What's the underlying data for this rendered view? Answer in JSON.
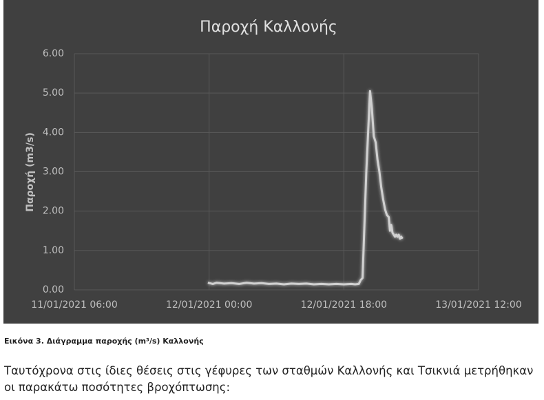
{
  "chart_data": {
    "type": "line",
    "title": "Παροχή Καλλονής",
    "y_label": "Παροχή (m3/s)",
    "x": [
      "11/01/2021 23:50",
      "12/01/2021 00:30",
      "12/01/2021 01:00",
      "12/01/2021 02:00",
      "12/01/2021 03:00",
      "12/01/2021 04:00",
      "12/01/2021 05:00",
      "12/01/2021 06:00",
      "12/01/2021 07:00",
      "12/01/2021 08:00",
      "12/01/2021 09:00",
      "12/01/2021 10:00",
      "12/01/2021 11:00",
      "12/01/2021 12:00",
      "12/01/2021 13:00",
      "12/01/2021 14:00",
      "12/01/2021 15:00",
      "12/01/2021 16:00",
      "12/01/2021 17:00",
      "12/01/2021 18:00",
      "12/01/2021 19:00",
      "12/01/2021 19:30",
      "12/01/2021 20:00",
      "12/01/2021 20:15",
      "12/01/2021 20:30",
      "12/01/2021 21:00",
      "12/01/2021 21:30",
      "12/01/2021 21:45",
      "12/01/2021 22:00",
      "12/01/2021 22:15",
      "12/01/2021 22:30",
      "12/01/2021 22:45",
      "12/01/2021 23:00",
      "12/01/2021 23:15",
      "12/01/2021 23:30",
      "12/01/2021 23:45",
      "13/01/2021 00:00",
      "13/01/2021 00:10",
      "13/01/2021 00:20",
      "13/01/2021 00:30",
      "13/01/2021 00:40",
      "13/01/2021 00:50",
      "13/01/2021 01:00",
      "13/01/2021 01:10",
      "13/01/2021 01:20",
      "13/01/2021 01:30",
      "13/01/2021 01:40",
      "13/01/2021 01:50"
    ],
    "series": [
      {
        "name": "Παροχή",
        "color": "#d0d0d0",
        "values": [
          0.18,
          0.15,
          0.18,
          0.16,
          0.17,
          0.15,
          0.18,
          0.16,
          0.17,
          0.15,
          0.16,
          0.14,
          0.16,
          0.15,
          0.16,
          0.14,
          0.15,
          0.14,
          0.15,
          0.14,
          0.15,
          0.14,
          0.15,
          0.25,
          0.3,
          3.0,
          5.05,
          4.6,
          3.9,
          3.75,
          3.3,
          3.0,
          2.6,
          2.3,
          2.05,
          1.9,
          1.85,
          1.5,
          1.65,
          1.45,
          1.4,
          1.35,
          1.4,
          1.35,
          1.4,
          1.3,
          1.35,
          1.3
        ]
      }
    ],
    "xlim": [
      "11/01/2021 06:00",
      "13/01/2021 12:00"
    ],
    "xticks": [
      "11/01/2021 06:00",
      "12/01/2021 00:00",
      "12/01/2021 18:00",
      "13/01/2021 12:00"
    ],
    "ylim": [
      0,
      6
    ],
    "yticks": [
      {
        "value": 0,
        "label": "0.00"
      },
      {
        "value": 1,
        "label": "1.00"
      },
      {
        "value": 2,
        "label": "2.00"
      },
      {
        "value": 3,
        "label": "3.00"
      },
      {
        "value": 4,
        "label": "4.00"
      },
      {
        "value": 5,
        "label": "5.00"
      },
      {
        "value": 6,
        "label": "6.00"
      }
    ],
    "grid": true
  },
  "caption": "Εικόνα 3. Διάγραμμα παροχής (m³/s) Καλλονής",
  "paragraph": "Ταυτόχρονα στις ίδιες θέσεις στις γέφυρες των σταθμών Καλλονής και Τσικνιά μετρήθηκαν οι παρακάτω ποσότητες βροχόπτωσης:"
}
